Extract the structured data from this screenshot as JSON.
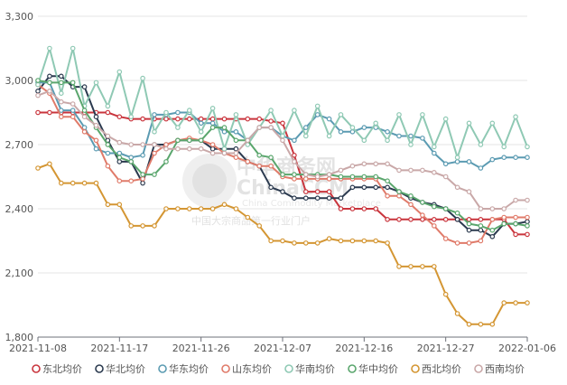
{
  "chart_data": {
    "type": "line",
    "title": "",
    "xlabel": "",
    "ylabel": "",
    "ylim": [
      1800,
      3300
    ],
    "y_ticks": [
      "3,300",
      "3,000",
      "2,700",
      "2,400",
      "2,100",
      "1,800"
    ],
    "y_tick_values": [
      3300,
      3000,
      2700,
      2400,
      2100,
      1800
    ],
    "x_ticks": [
      "2021-11-08",
      "2021-11-17",
      "2021-11-26",
      "2021-12-07",
      "2021-12-16",
      "2021-12-27",
      "2022-01-06"
    ],
    "x_tick_index": [
      0,
      7,
      14,
      21,
      28,
      35,
      42
    ],
    "n_points": 43,
    "grid": "horizontal",
    "legend_position": "bottom",
    "series": [
      {
        "name": "东北均价",
        "color": "#c9353d",
        "values": [
          2850,
          2850,
          2850,
          2850,
          2850,
          2850,
          2850,
          2830,
          2820,
          2820,
          2820,
          2820,
          2820,
          2820,
          2820,
          2820,
          2820,
          2820,
          2820,
          2820,
          2810,
          2800,
          2650,
          2480,
          2480,
          2480,
          2400,
          2400,
          2400,
          2400,
          2350,
          2350,
          2350,
          2350,
          2350,
          2350,
          2350,
          2350,
          2350,
          2350,
          2350,
          2280,
          2280
        ]
      },
      {
        "name": "华北均价",
        "color": "#2b3a4f",
        "values": [
          2950,
          3020,
          3020,
          2970,
          2970,
          2830,
          2720,
          2620,
          2620,
          2520,
          2700,
          2700,
          2720,
          2720,
          2720,
          2680,
          2680,
          2680,
          2620,
          2600,
          2500,
          2480,
          2450,
          2450,
          2450,
          2450,
          2450,
          2500,
          2500,
          2500,
          2500,
          2480,
          2450,
          2430,
          2420,
          2400,
          2350,
          2300,
          2300,
          2270,
          2330,
          2330,
          2340
        ]
      },
      {
        "name": "华东均价",
        "color": "#5b9bb2",
        "values": [
          2990,
          2990,
          2860,
          2860,
          2780,
          2680,
          2660,
          2660,
          2640,
          2650,
          2840,
          2840,
          2850,
          2850,
          2800,
          2800,
          2760,
          2760,
          2720,
          2780,
          2780,
          2740,
          2720,
          2780,
          2840,
          2820,
          2760,
          2760,
          2780,
          2780,
          2760,
          2740,
          2740,
          2730,
          2660,
          2610,
          2620,
          2620,
          2590,
          2630,
          2640,
          2640,
          2640
        ]
      },
      {
        "name": "山东均价",
        "color": "#e07b6a",
        "values": [
          2980,
          2940,
          2830,
          2830,
          2760,
          2720,
          2600,
          2530,
          2530,
          2540,
          2660,
          2700,
          2720,
          2730,
          2720,
          2700,
          2660,
          2640,
          2620,
          2600,
          2600,
          2550,
          2540,
          2540,
          2540,
          2540,
          2540,
          2540,
          2540,
          2540,
          2460,
          2460,
          2420,
          2370,
          2320,
          2260,
          2240,
          2240,
          2250,
          2350,
          2360,
          2360,
          2360
        ]
      },
      {
        "name": "华南均价",
        "color": "#8fc9b4",
        "values": [
          2980,
          3150,
          2940,
          3150,
          2880,
          2990,
          2880,
          3040,
          2830,
          3010,
          2760,
          2850,
          2780,
          2860,
          2760,
          2870,
          2680,
          2840,
          2700,
          2780,
          2860,
          2740,
          2860,
          2740,
          2880,
          2740,
          2840,
          2780,
          2720,
          2800,
          2720,
          2840,
          2700,
          2840,
          2690,
          2820,
          2640,
          2800,
          2700,
          2800,
          2690,
          2830,
          2690
        ]
      },
      {
        "name": "华中均价",
        "color": "#5aa66d",
        "values": [
          3000,
          2990,
          2990,
          2990,
          2860,
          2780,
          2700,
          2640,
          2620,
          2560,
          2560,
          2620,
          2720,
          2720,
          2720,
          2780,
          2780,
          2720,
          2720,
          2650,
          2640,
          2560,
          2560,
          2560,
          2560,
          2560,
          2550,
          2550,
          2550,
          2550,
          2530,
          2480,
          2460,
          2430,
          2410,
          2400,
          2380,
          2330,
          2320,
          2300,
          2330,
          2330,
          2320
        ]
      },
      {
        "name": "西北均价",
        "color": "#d49633",
        "values": [
          2590,
          2610,
          2520,
          2520,
          2520,
          2520,
          2420,
          2420,
          2320,
          2320,
          2320,
          2400,
          2400,
          2400,
          2400,
          2400,
          2420,
          2400,
          2360,
          2320,
          2250,
          2250,
          2240,
          2240,
          2240,
          2260,
          2250,
          2250,
          2250,
          2250,
          2240,
          2130,
          2130,
          2130,
          2130,
          2000,
          1910,
          1860,
          1860,
          1860,
          1960,
          1960,
          1960
        ]
      },
      {
        "name": "西南均价",
        "color": "#c9a8a8",
        "values": [
          2930,
          2950,
          2900,
          2890,
          2830,
          2790,
          2740,
          2710,
          2700,
          2700,
          2700,
          2680,
          2680,
          2680,
          2680,
          2660,
          2660,
          2660,
          2720,
          2780,
          2780,
          2720,
          2620,
          2560,
          2550,
          2560,
          2580,
          2600,
          2610,
          2610,
          2610,
          2580,
          2580,
          2580,
          2570,
          2550,
          2500,
          2480,
          2400,
          2400,
          2400,
          2440,
          2440
        ]
      }
    ]
  },
  "watermark": {
    "cn_name": "中华商务网",
    "en_name": "ChinaCCM",
    "en_sub": "China Commodity Marketplace",
    "slogan": "中国大宗商品第一行业门户"
  }
}
